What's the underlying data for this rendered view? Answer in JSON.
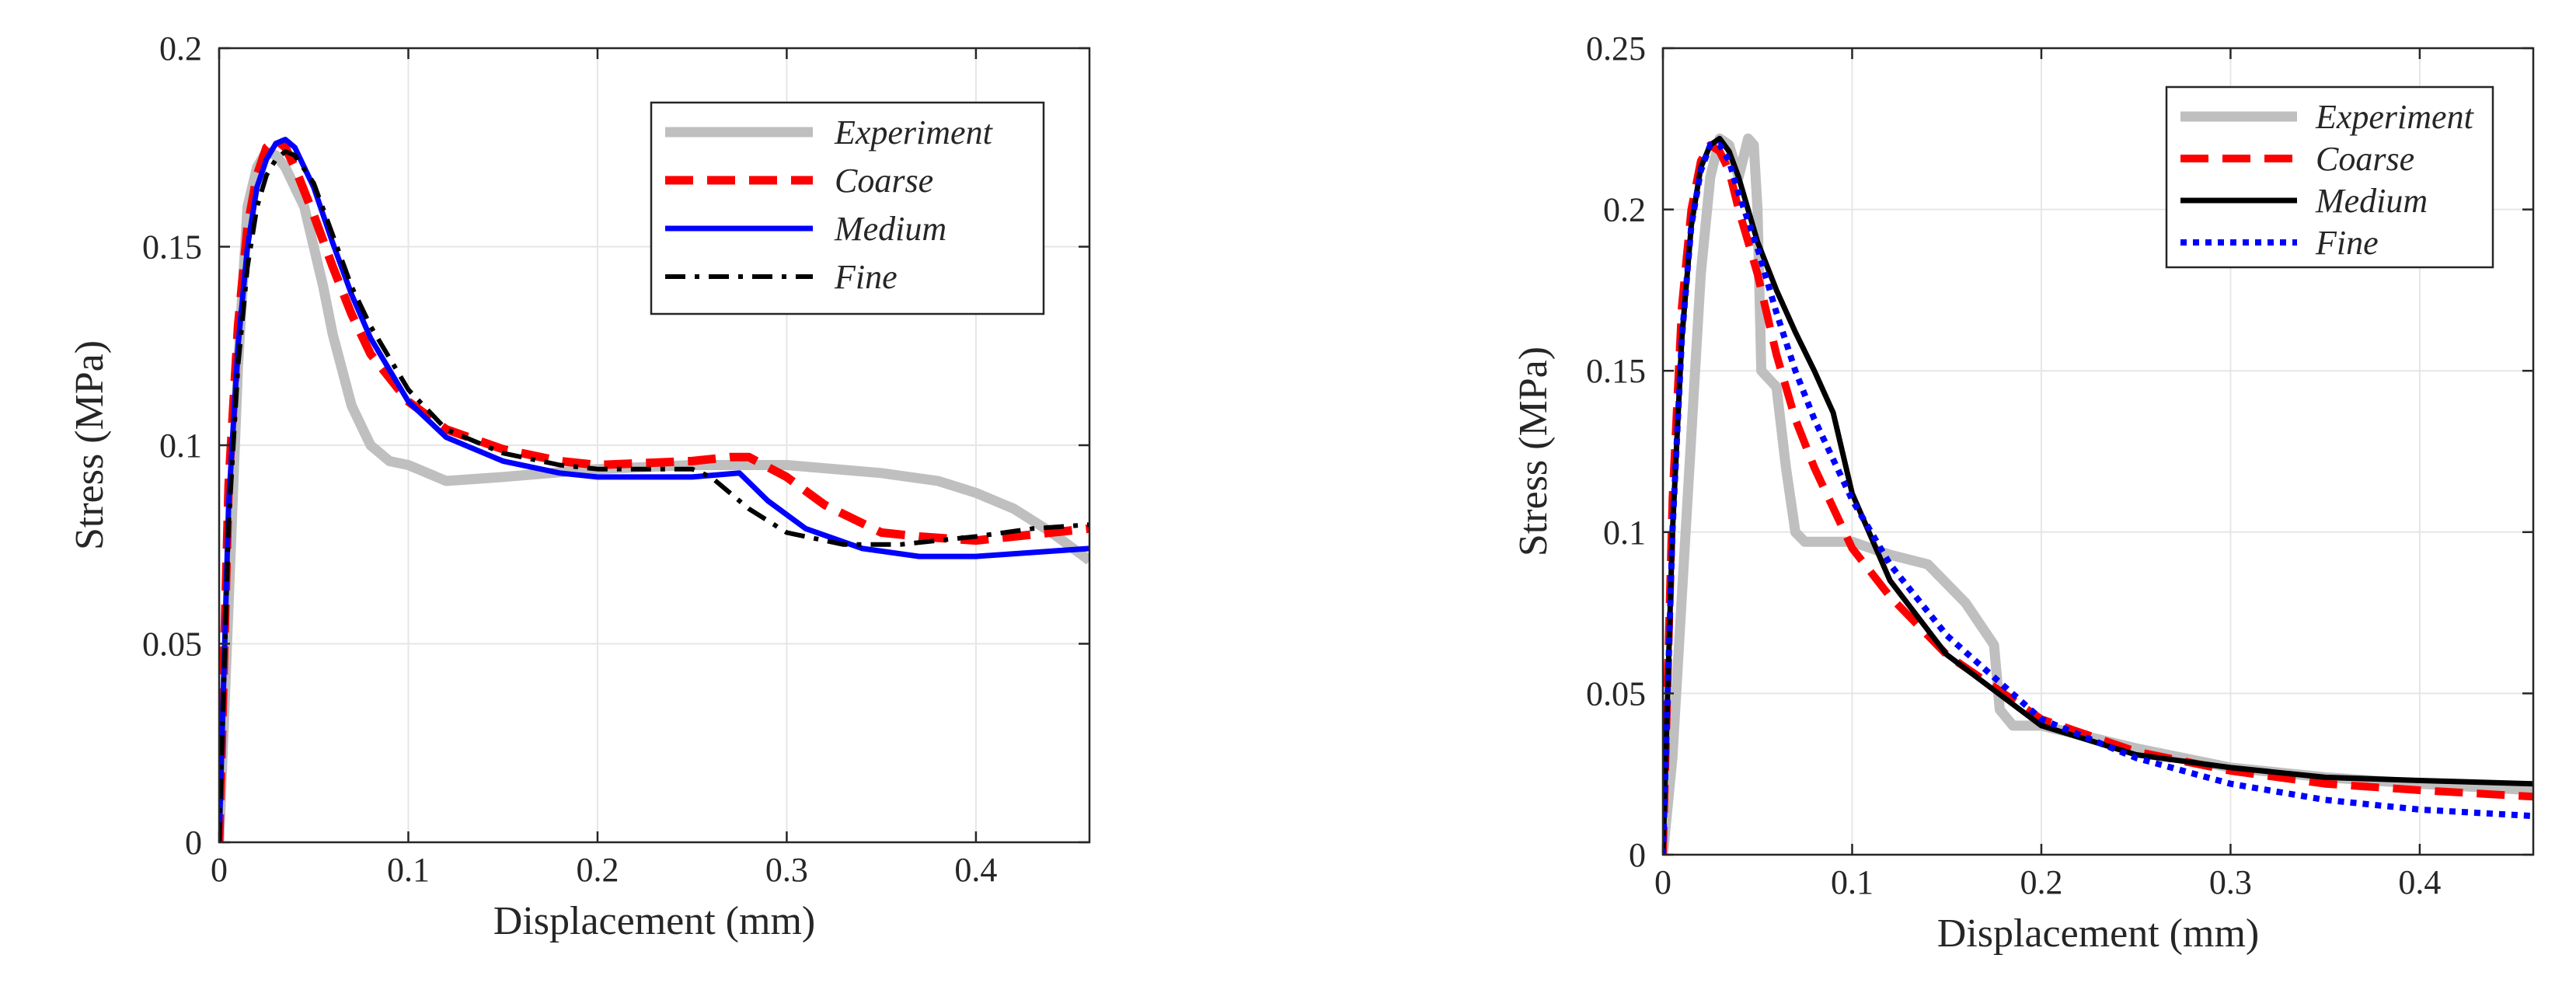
{
  "chart_data": [
    {
      "type": "line",
      "title": "",
      "xlabel": "Displacement (mm)",
      "ylabel": "Stress (MPa)",
      "xlim": [
        0,
        0.46
      ],
      "ylim": [
        0,
        0.2
      ],
      "xticks": [
        0,
        0.1,
        0.2,
        0.3,
        0.4
      ],
      "yticks": [
        0,
        0.05,
        0.1,
        0.15,
        0.2
      ],
      "xtick_labels": [
        "0",
        "0.1",
        "0.2",
        "0.3",
        "0.4"
      ],
      "ytick_labels": [
        "0",
        "0.05",
        "0.1",
        "0.15",
        "0.2"
      ],
      "grid": true,
      "legend": "top-right",
      "series": [
        {
          "name": "Experiment",
          "color": "#bfbfbf",
          "style": "solid",
          "x": [
            0,
            0.005,
            0.01,
            0.015,
            0.02,
            0.025,
            0.03,
            0.035,
            0.04,
            0.045,
            0.05,
            0.055,
            0.06,
            0.07,
            0.08,
            0.09,
            0.1,
            0.12,
            0.15,
            0.2,
            0.25,
            0.3,
            0.35,
            0.38,
            0.4,
            0.42,
            0.44,
            0.46
          ],
          "y": [
            0,
            0.06,
            0.12,
            0.16,
            0.17,
            0.174,
            0.173,
            0.17,
            0.165,
            0.16,
            0.15,
            0.14,
            0.128,
            0.11,
            0.1,
            0.096,
            0.095,
            0.091,
            0.092,
            0.094,
            0.095,
            0.095,
            0.093,
            0.091,
            0.088,
            0.084,
            0.078,
            0.071
          ]
        },
        {
          "name": "Coarse",
          "color": "#ff0000",
          "style": "dashed",
          "x": [
            0,
            0.005,
            0.01,
            0.015,
            0.02,
            0.025,
            0.03,
            0.035,
            0.04,
            0.05,
            0.06,
            0.07,
            0.08,
            0.1,
            0.12,
            0.15,
            0.18,
            0.2,
            0.25,
            0.27,
            0.28,
            0.3,
            0.32,
            0.35,
            0.37,
            0.4,
            0.44,
            0.46
          ],
          "y": [
            0,
            0.09,
            0.13,
            0.155,
            0.168,
            0.175,
            0.177,
            0.175,
            0.17,
            0.158,
            0.145,
            0.133,
            0.123,
            0.111,
            0.104,
            0.099,
            0.096,
            0.095,
            0.096,
            0.097,
            0.097,
            0.092,
            0.085,
            0.078,
            0.077,
            0.076,
            0.078,
            0.079
          ]
        },
        {
          "name": "Medium",
          "color": "#0000ff",
          "style": "solid",
          "x": [
            0,
            0.005,
            0.01,
            0.015,
            0.02,
            0.025,
            0.03,
            0.035,
            0.04,
            0.05,
            0.06,
            0.07,
            0.08,
            0.1,
            0.12,
            0.15,
            0.18,
            0.2,
            0.25,
            0.275,
            0.29,
            0.31,
            0.34,
            0.37,
            0.4,
            0.43,
            0.46
          ],
          "y": [
            0,
            0.085,
            0.125,
            0.15,
            0.165,
            0.172,
            0.176,
            0.177,
            0.175,
            0.165,
            0.151,
            0.138,
            0.127,
            0.111,
            0.102,
            0.096,
            0.093,
            0.092,
            0.092,
            0.093,
            0.086,
            0.079,
            0.074,
            0.072,
            0.072,
            0.073,
            0.074
          ]
        },
        {
          "name": "Fine",
          "color": "#000000",
          "style": "dashdot",
          "x": [
            0,
            0.005,
            0.01,
            0.015,
            0.02,
            0.025,
            0.03,
            0.035,
            0.04,
            0.05,
            0.06,
            0.07,
            0.08,
            0.1,
            0.12,
            0.15,
            0.18,
            0.2,
            0.25,
            0.26,
            0.28,
            0.3,
            0.33,
            0.36,
            0.4,
            0.43,
            0.46
          ],
          "y": [
            0,
            0.08,
            0.12,
            0.145,
            0.16,
            0.168,
            0.172,
            0.174,
            0.173,
            0.166,
            0.153,
            0.14,
            0.13,
            0.114,
            0.104,
            0.098,
            0.095,
            0.094,
            0.094,
            0.092,
            0.084,
            0.078,
            0.075,
            0.075,
            0.077,
            0.079,
            0.08
          ]
        }
      ]
    },
    {
      "type": "line",
      "title": "",
      "xlabel": "Displacement (mm)",
      "ylabel": "Stress (MPa)",
      "xlim": [
        0,
        0.46
      ],
      "ylim": [
        0,
        0.25
      ],
      "xticks": [
        0,
        0.1,
        0.2,
        0.3,
        0.4
      ],
      "yticks": [
        0,
        0.05,
        0.1,
        0.15,
        0.2,
        0.25
      ],
      "xtick_labels": [
        "0",
        "0.1",
        "0.2",
        "0.3",
        "0.4"
      ],
      "ytick_labels": [
        "0",
        "0.05",
        "0.1",
        "0.15",
        "0.2",
        "0.25"
      ],
      "grid": true,
      "legend": "top-right",
      "series": [
        {
          "name": "Experiment",
          "color": "#bfbfbf",
          "style": "solid",
          "x": [
            0,
            0.005,
            0.01,
            0.015,
            0.02,
            0.025,
            0.03,
            0.035,
            0.04,
            0.045,
            0.048,
            0.05,
            0.052,
            0.06,
            0.065,
            0.07,
            0.075,
            0.08,
            0.1,
            0.12,
            0.14,
            0.16,
            0.175,
            0.178,
            0.185,
            0.2,
            0.25,
            0.3,
            0.35,
            0.4,
            0.46
          ],
          "y": [
            0,
            0.03,
            0.08,
            0.13,
            0.18,
            0.21,
            0.222,
            0.22,
            0.21,
            0.222,
            0.22,
            0.2,
            0.15,
            0.145,
            0.12,
            0.1,
            0.097,
            0.097,
            0.097,
            0.093,
            0.09,
            0.078,
            0.065,
            0.045,
            0.04,
            0.04,
            0.033,
            0.027,
            0.024,
            0.022,
            0.02
          ]
        },
        {
          "name": "Coarse",
          "color": "#ff0000",
          "style": "dashed",
          "x": [
            0,
            0.005,
            0.01,
            0.015,
            0.02,
            0.025,
            0.03,
            0.035,
            0.04,
            0.05,
            0.06,
            0.07,
            0.08,
            0.1,
            0.12,
            0.15,
            0.2,
            0.25,
            0.3,
            0.35,
            0.4,
            0.46
          ],
          "y": [
            0,
            0.11,
            0.17,
            0.2,
            0.215,
            0.22,
            0.218,
            0.212,
            0.2,
            0.18,
            0.155,
            0.135,
            0.12,
            0.095,
            0.08,
            0.062,
            0.042,
            0.032,
            0.026,
            0.022,
            0.02,
            0.018
          ]
        },
        {
          "name": "Medium",
          "color": "#000000",
          "style": "solid",
          "x": [
            0,
            0.005,
            0.01,
            0.015,
            0.02,
            0.025,
            0.03,
            0.035,
            0.04,
            0.05,
            0.06,
            0.07,
            0.08,
            0.09,
            0.1,
            0.12,
            0.15,
            0.2,
            0.25,
            0.3,
            0.35,
            0.4,
            0.46
          ],
          "y": [
            0,
            0.1,
            0.16,
            0.195,
            0.213,
            0.22,
            0.222,
            0.218,
            0.21,
            0.19,
            0.175,
            0.162,
            0.15,
            0.137,
            0.112,
            0.085,
            0.062,
            0.04,
            0.031,
            0.027,
            0.024,
            0.023,
            0.022
          ]
        },
        {
          "name": "Fine",
          "color": "#0000ff",
          "style": "dotted",
          "x": [
            0,
            0.005,
            0.01,
            0.015,
            0.02,
            0.025,
            0.03,
            0.035,
            0.04,
            0.05,
            0.06,
            0.07,
            0.08,
            0.1,
            0.12,
            0.15,
            0.2,
            0.25,
            0.3,
            0.35,
            0.4,
            0.46
          ],
          "y": [
            0,
            0.1,
            0.16,
            0.195,
            0.212,
            0.22,
            0.22,
            0.215,
            0.205,
            0.188,
            0.168,
            0.15,
            0.135,
            0.11,
            0.09,
            0.068,
            0.042,
            0.03,
            0.022,
            0.017,
            0.014,
            0.012
          ]
        }
      ]
    }
  ]
}
